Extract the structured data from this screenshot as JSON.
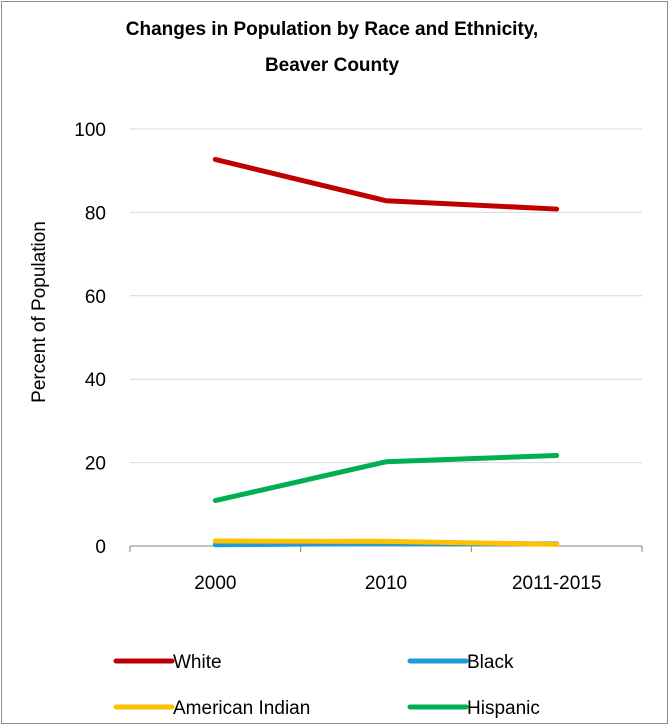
{
  "chart_data": {
    "type": "line",
    "title": "Changes in Population by Race and Ethnicity,",
    "subtitle": "Beaver County",
    "ylabel": "Percent of Population",
    "xlabel": "",
    "categories": [
      "2000",
      "2010",
      "2011-2015"
    ],
    "ylim": [
      0,
      100
    ],
    "yticks": [
      0,
      20,
      40,
      60,
      80,
      100
    ],
    "grid": true,
    "legend_position": "bottom",
    "series": [
      {
        "name": "White",
        "color": "#c00000",
        "values": [
          92.7,
          82.8,
          80.8
        ]
      },
      {
        "name": "Black",
        "color": "#1f9bd7",
        "values": [
          0.3,
          0.6,
          0.5
        ]
      },
      {
        "name": "American Indian",
        "color": "#ffc000",
        "values": [
          1.2,
          1.1,
          0.4
        ]
      },
      {
        "name": "Hispanic",
        "color": "#00b050",
        "values": [
          10.9,
          20.2,
          21.7
        ]
      }
    ]
  }
}
